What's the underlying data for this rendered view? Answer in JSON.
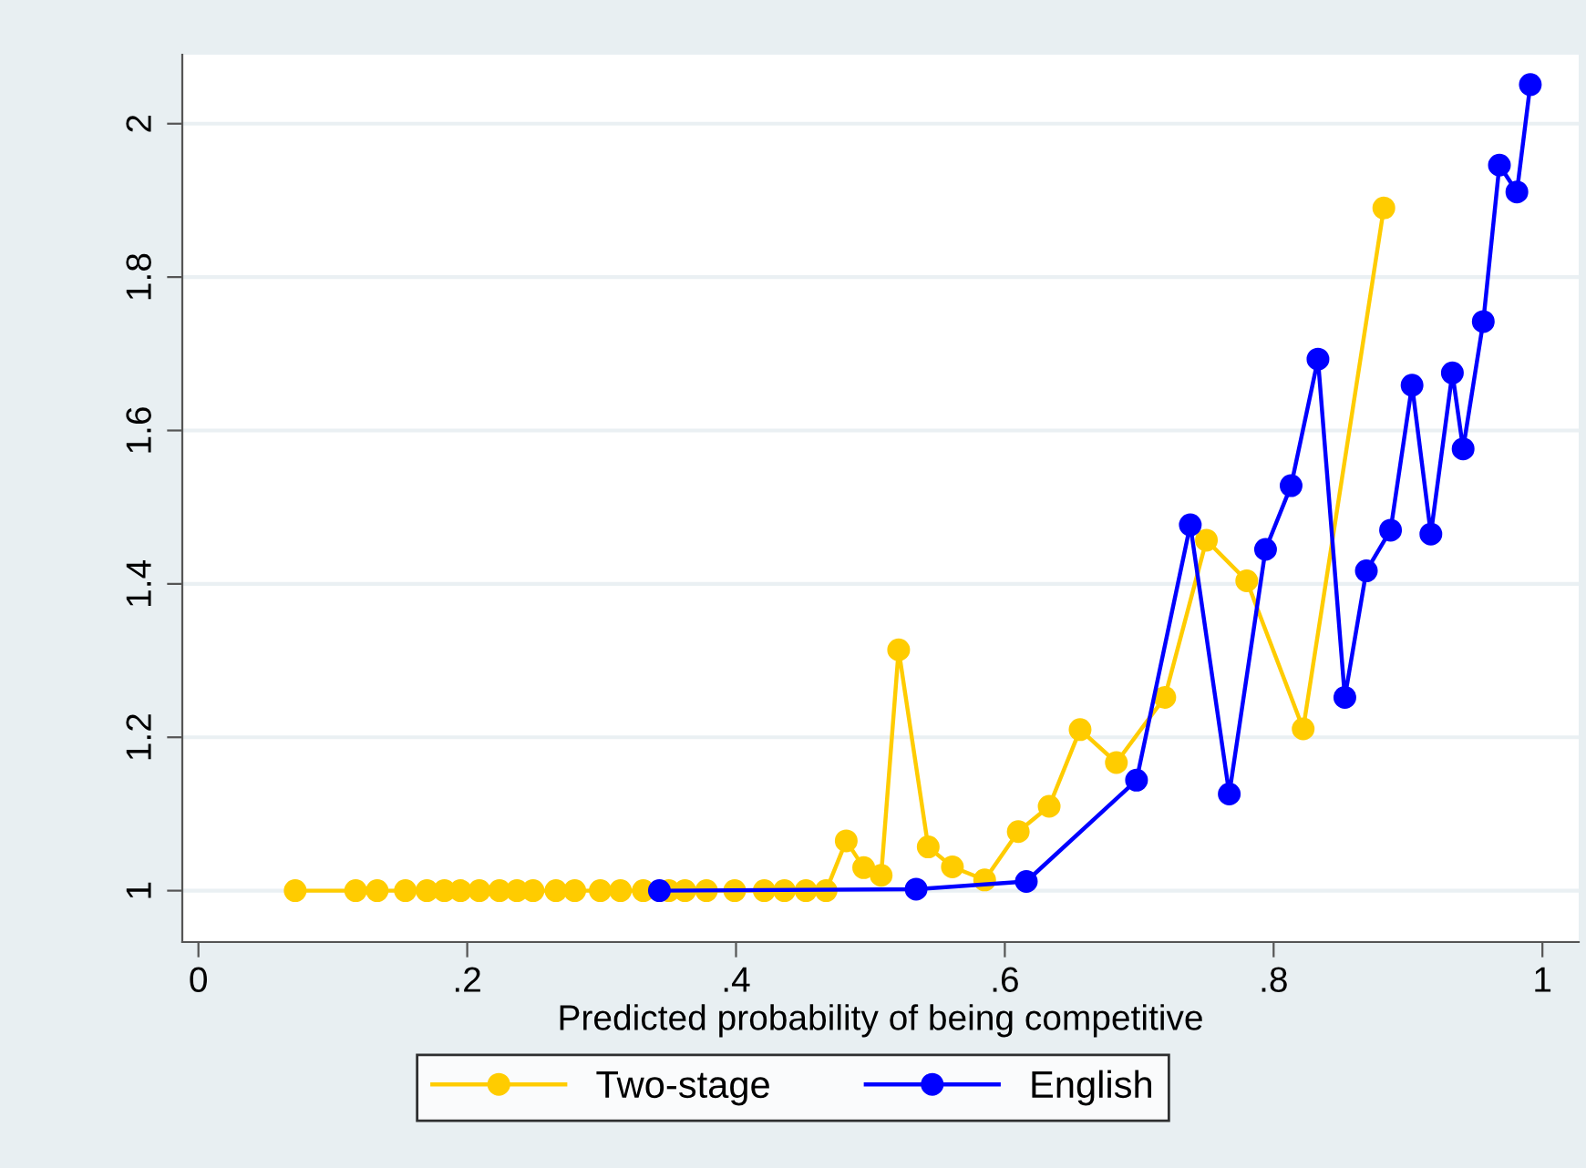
{
  "chart_data": {
    "type": "line",
    "xlabel": "Predicted probability of being competitive",
    "xlim": [
      -0.012,
      1.027
    ],
    "xticks": [
      0,
      {
        "value": 0.2,
        "label": ".2"
      },
      {
        "value": 0.4,
        "label": ".4"
      },
      {
        "value": 0.6,
        "label": ".6"
      },
      {
        "value": 0.8,
        "label": ".8"
      },
      1
    ],
    "ylim": [
      0.933,
      2.09
    ],
    "yticks": [
      1,
      1.2,
      1.4,
      1.6,
      1.8,
      2
    ],
    "grid": "y",
    "legend": "bottom",
    "marker": "circle",
    "line_style": "solid",
    "series": [
      {
        "name": "Two-stage",
        "color": "#ffcc00",
        "x": [
          0.072,
          0.117,
          0.133,
          0.154,
          0.17,
          0.183,
          0.195,
          0.209,
          0.224,
          0.237,
          0.249,
          0.266,
          0.28,
          0.299,
          0.314,
          0.331,
          0.35,
          0.362,
          0.378,
          0.399,
          0.421,
          0.436,
          0.452,
          0.467,
          0.482,
          0.495,
          0.508,
          0.521,
          0.543,
          0.561,
          0.585,
          0.61,
          0.633,
          0.656,
          0.683,
          0.719,
          0.75,
          0.78,
          0.822,
          0.882
        ],
        "values": [
          1,
          1,
          1,
          1,
          1,
          1,
          1,
          1,
          1,
          1,
          1,
          1,
          1,
          1,
          1,
          1,
          1,
          1,
          1,
          1,
          1,
          1,
          1,
          1,
          1.065,
          1.03,
          1.02,
          1.314,
          1.057,
          1.031,
          1.014,
          1.077,
          1.11,
          1.21,
          1.167,
          1.252,
          1.457,
          1.404,
          1.211,
          1.89
        ]
      },
      {
        "name": "English",
        "color": "#0000ff",
        "x": [
          0.343,
          0.534,
          0.616,
          0.698,
          0.738,
          0.767,
          0.794,
          0.813,
          0.833,
          0.853,
          0.869,
          0.887,
          0.903,
          0.917,
          0.933,
          0.941,
          0.956,
          0.968,
          0.981,
          0.991
        ],
        "values": [
          1,
          1.002,
          1.012,
          1.144,
          1.477,
          1.126,
          1.445,
          1.528,
          1.693,
          1.252,
          1.417,
          1.47,
          1.659,
          1.465,
          1.675,
          1.576,
          1.742,
          1.946,
          1.911,
          2.051
        ]
      }
    ]
  }
}
